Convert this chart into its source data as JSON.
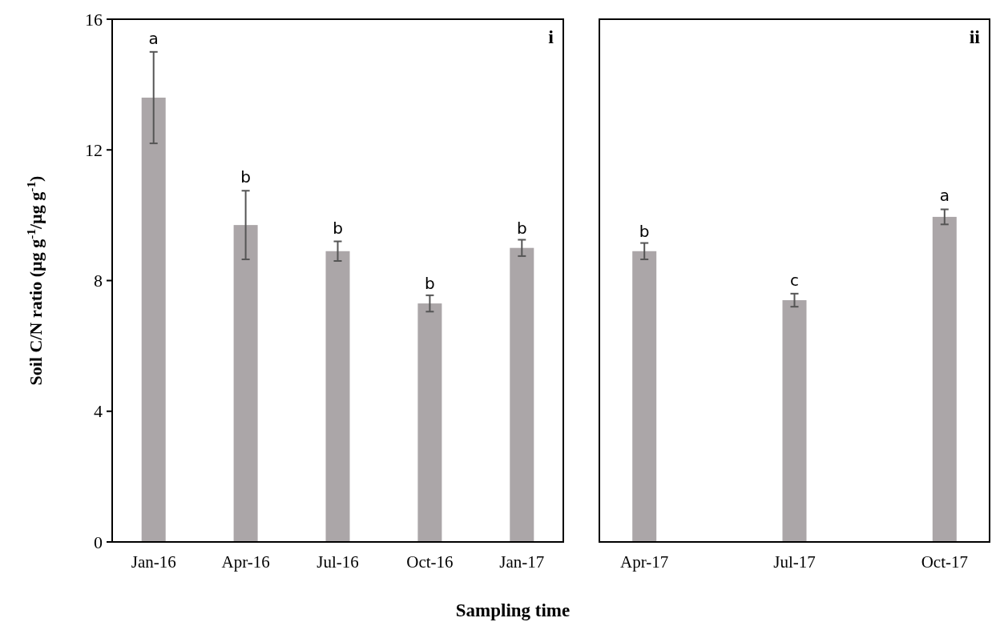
{
  "chart_data": [
    {
      "type": "bar",
      "ylabel": "Soil C/N ratio (µg g$^{-1}$/µg g$^{-1}$)",
      "xlabel": "Sampling time",
      "categories": [
        "Jan-16",
        "Apr-16",
        "Jul-16",
        "Oct-16",
        "Jan-17"
      ],
      "series": [
        {
          "color": "#aba6a8",
          "values": [
            13.6,
            9.7,
            8.9,
            7.3,
            9.0
          ],
          "errors": [
            1.4,
            1.05,
            0.3,
            0.25,
            0.25
          ]
        }
      ],
      "ylim": [
        0,
        16
      ],
      "yticks": [
        0,
        4,
        8,
        12,
        16
      ],
      "annotations": [
        "i",
        {
          "text": "a",
          "x": "Jan-16",
          "y": 15.0
        },
        {
          "text": "b",
          "x": "Apr-16",
          "y": 10.75
        },
        {
          "text": "b",
          "x": "Jul-16",
          "y": 9.2
        },
        {
          "text": "b",
          "x": "Oct-16",
          "y": 7.5
        },
        {
          "text": "b",
          "x": "Jan-17",
          "y": 9.2
        }
      ]
    },
    {
      "type": "bar",
      "categories": [
        "Apr-17",
        "Jul-17",
        "Oct-17"
      ],
      "series": [
        {
          "color": "#aba6a8",
          "values": [
            8.9,
            7.4,
            9.95
          ],
          "errors": [
            0.25,
            0.2,
            0.23
          ]
        }
      ],
      "ylim": [
        0,
        16
      ],
      "tick_labels": "x",
      "annotations": [
        "ii",
        {
          "text": "b",
          "x": "Apr-17",
          "y": 9.1
        },
        {
          "text": "c",
          "x": "Jul-17",
          "y": 7.6
        },
        {
          "text": "a",
          "x": "Oct-17",
          "y": 10.2
        }
      ]
    }
  ]
}
